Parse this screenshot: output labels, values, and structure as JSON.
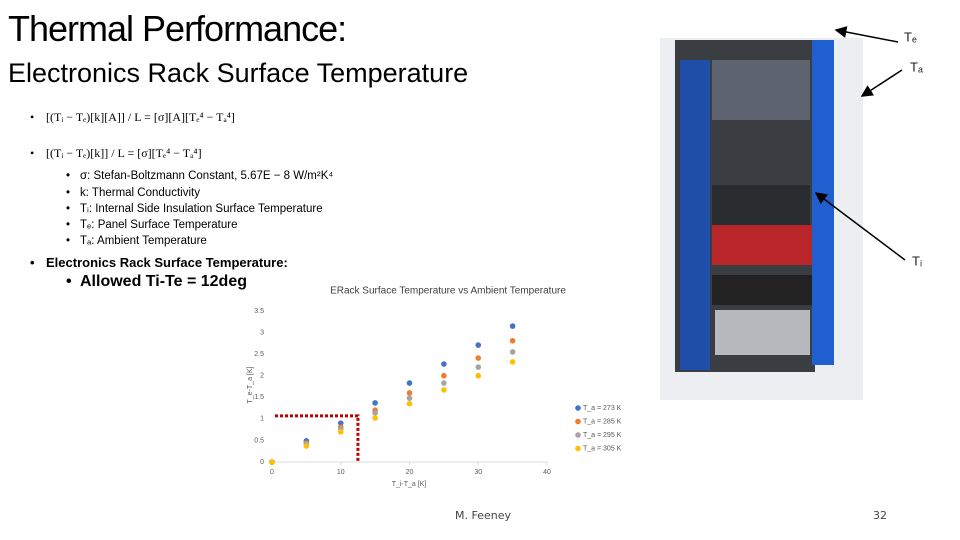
{
  "slide": {
    "title": "Thermal Performance:",
    "subtitle": "Electronics Rack Surface Temperature",
    "bullets": [
      "[(Tᵢ − Tₑ)[k][A]] / L = [σ][A][Tₑ⁴ − Tₐ⁴]",
      "[(Tᵢ − Tₑ)[k]] / L = [σ][Tₑ⁴ − Tₐ⁴]"
    ],
    "sub_bullets": [
      "σ: Stefan-Boltzmann Constant, 5.67E − 8 W/m²K⁴",
      "k: Thermal Conductivity",
      "Tᵢ: Internal Side Insulation Surface Temperature",
      "Tₑ: Panel Surface Temperature",
      "Tₐ: Ambient Temperature"
    ],
    "section": "Electronics Rack Surface Temperature:",
    "highlight": "Allowed Ti-Te = 12deg",
    "image_labels": [
      "Tₑ",
      "Tₐ",
      "Tᵢ"
    ],
    "author": "M. Feeney",
    "page": "32"
  },
  "chart_data": {
    "type": "scatter",
    "title": "ERack Surface Temperature vs Ambient Temperature",
    "x_label": "T_i-T_a [K]",
    "y_label": "T_e-T_a [K]",
    "x": [
      0,
      5,
      10,
      15,
      20,
      25,
      30,
      35
    ],
    "series": [
      {
        "name": "T_a = 273 K",
        "color": "#4472c4",
        "values": [
          0,
          0.49,
          0.9,
          1.37,
          1.83,
          2.27,
          2.71,
          3.15
        ]
      },
      {
        "name": "T_a = 285 K",
        "color": "#ed7d31",
        "values": [
          0,
          0.44,
          0.81,
          1.2,
          1.6,
          2.0,
          2.41,
          2.81
        ]
      },
      {
        "name": "T_a = 295 K",
        "color": "#a5a5a5",
        "values": [
          0,
          0.42,
          0.77,
          1.14,
          1.48,
          1.83,
          2.2,
          2.55
        ]
      },
      {
        "name": "T_a = 305 K",
        "color": "#ffc000",
        "values": [
          0,
          0.37,
          0.7,
          1.02,
          1.35,
          1.67,
          2.0,
          2.32
        ]
      }
    ],
    "xlim": [
      0,
      40
    ],
    "xticks": [
      0,
      10,
      20,
      30,
      40
    ],
    "ylim": [
      0,
      3.5
    ],
    "yticks": [
      0,
      0.5,
      1,
      1.5,
      2,
      2.5,
      3,
      3.5
    ],
    "guide": {
      "x": 12.5,
      "y": 1.07,
      "color": "#c00000"
    }
  }
}
